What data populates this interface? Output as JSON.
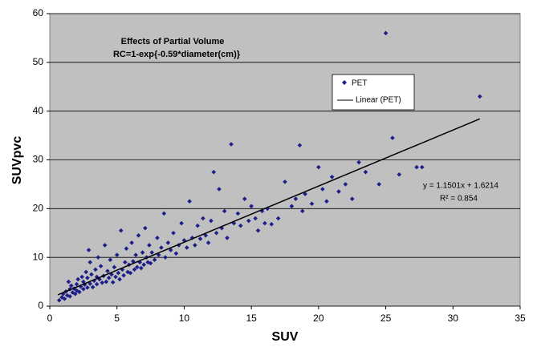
{
  "chart_data": {
    "type": "scatter",
    "title": "Effects of Partial Volume",
    "subtitle": "RC=1-exp{-0.59*diameter(cm)}",
    "x_label": "SUV",
    "y_label": "SUVpvc",
    "xlim": [
      0,
      35
    ],
    "ylim": [
      0,
      60
    ],
    "xticks": [
      0,
      5,
      10,
      15,
      20,
      25,
      30,
      35
    ],
    "yticks": [
      0,
      10,
      20,
      30,
      40,
      50,
      60
    ],
    "grid": true,
    "legend": "upper-right",
    "series": [
      {
        "name": "PET",
        "color": "#1c1f8a",
        "x": [
          0.7,
          0.9,
          1.0,
          1.1,
          1.2,
          1.3,
          1.4,
          1.5,
          1.5,
          1.6,
          1.7,
          1.8,
          1.9,
          2.0,
          2.0,
          2.1,
          2.2,
          2.3,
          2.4,
          2.5,
          2.5,
          2.6,
          2.7,
          2.8,
          2.8,
          2.9,
          3.0,
          3.0,
          3.1,
          3.2,
          3.3,
          3.4,
          3.5,
          3.5,
          3.6,
          3.7,
          3.8,
          3.9,
          4.0,
          4.1,
          4.2,
          4.3,
          4.4,
          4.5,
          4.6,
          4.7,
          4.8,
          4.9,
          5.0,
          5.1,
          5.2,
          5.3,
          5.4,
          5.5,
          5.6,
          5.7,
          5.8,
          5.9,
          6.0,
          6.1,
          6.2,
          6.3,
          6.4,
          6.5,
          6.6,
          6.7,
          6.8,
          6.9,
          7.0,
          7.1,
          7.2,
          7.3,
          7.4,
          7.5,
          7.6,
          7.8,
          8.0,
          8.1,
          8.3,
          8.5,
          8.6,
          8.8,
          9.0,
          9.2,
          9.4,
          9.6,
          9.8,
          10.0,
          10.2,
          10.4,
          10.6,
          10.8,
          11.0,
          11.2,
          11.4,
          11.6,
          11.8,
          12.0,
          12.2,
          12.4,
          12.6,
          12.8,
          13.0,
          13.2,
          13.5,
          13.7,
          14.0,
          14.2,
          14.5,
          14.8,
          15.0,
          15.3,
          15.5,
          15.8,
          16.0,
          16.2,
          16.5,
          17.0,
          17.5,
          18.0,
          18.3,
          18.6,
          18.8,
          19.0,
          19.5,
          20.0,
          20.3,
          20.6,
          21.0,
          21.5,
          22.0,
          22.5,
          23.0,
          23.5,
          24.5,
          25.0,
          25.5,
          26.0,
          27.3,
          27.7,
          32.0
        ],
        "values": [
          1.2,
          1.8,
          2.5,
          1.5,
          3.0,
          2.2,
          5.0,
          3.5,
          2.0,
          4.2,
          2.8,
          3.6,
          2.5,
          4.5,
          3.2,
          5.5,
          2.9,
          4.0,
          6.0,
          3.5,
          5.0,
          4.4,
          7.0,
          3.8,
          5.8,
          11.5,
          4.6,
          9.0,
          6.5,
          3.9,
          5.2,
          7.5,
          4.5,
          6.0,
          10.0,
          5.5,
          8.2,
          4.8,
          6.2,
          12.5,
          5.0,
          7.2,
          5.8,
          9.5,
          6.5,
          4.9,
          8.0,
          6.0,
          10.5,
          6.8,
          5.5,
          15.5,
          7.5,
          6.3,
          9.0,
          11.8,
          7.0,
          8.5,
          6.8,
          13.0,
          9.2,
          7.5,
          10.5,
          8.0,
          14.5,
          9.0,
          7.8,
          11.0,
          8.5,
          16.0,
          10.0,
          9.0,
          12.5,
          8.8,
          11.0,
          9.5,
          14.0,
          10.5,
          12.0,
          19.0,
          10.0,
          13.0,
          11.5,
          15.0,
          10.8,
          12.5,
          17.0,
          13.5,
          12.0,
          21.5,
          14.0,
          12.5,
          16.5,
          13.8,
          18.0,
          14.5,
          13.0,
          17.5,
          27.5,
          15.0,
          24.0,
          16.0,
          19.5,
          14.0,
          33.2,
          17.0,
          19.0,
          16.5,
          22.0,
          17.5,
          20.5,
          18.0,
          15.5,
          19.5,
          17.0,
          20.0,
          16.8,
          18.0,
          25.5,
          20.5,
          22.0,
          33.0,
          19.5,
          23.0,
          21.0,
          28.5,
          24.0,
          21.5,
          26.5,
          23.5,
          25.0,
          22.0,
          29.5,
          27.5,
          25.0,
          56.0,
          34.5,
          27.0,
          28.5,
          28.5,
          43.0
        ]
      }
    ],
    "trendline": {
      "name": "Linear (PET)",
      "color": "#000000",
      "x": [
        0.6,
        32
      ],
      "values": [
        2.31,
        38.42
      ]
    },
    "annotations": [
      "y = 1.1501x + 1.6214",
      "R² = 0.854"
    ]
  }
}
